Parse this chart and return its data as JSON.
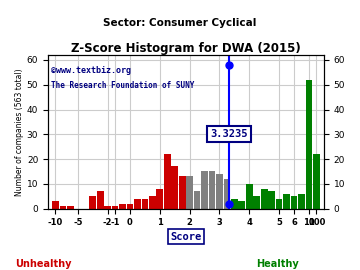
{
  "title": "Z-Score Histogram for DWA (2015)",
  "subtitle": "Sector: Consumer Cyclical",
  "watermark1": "©www.textbiz.org",
  "watermark2": "The Research Foundation of SUNY",
  "xlabel": "Score",
  "ylabel": "Number of companies (563 total)",
  "zscore_value": 3.3235,
  "zscore_label": "3.3235",
  "ylim": [
    0,
    60
  ],
  "yticks": [
    0,
    10,
    20,
    30,
    40,
    50,
    60
  ],
  "bg_color": "#ffffff",
  "plot_bg": "#ffffff",
  "grid_color": "#cccccc",
  "unhealthy_color": "#cc0000",
  "healthy_color": "#008000",
  "annotation_color": "#0000cc",
  "bars": [
    {
      "bin": -11,
      "height": 3,
      "color": "#cc0000"
    },
    {
      "bin": -10,
      "height": 1,
      "color": "#cc0000"
    },
    {
      "bin": -9,
      "height": 1,
      "color": "#cc0000"
    },
    {
      "bin": -8,
      "height": 0,
      "color": "#cc0000"
    },
    {
      "bin": -7,
      "height": 0,
      "color": "#cc0000"
    },
    {
      "bin": -6,
      "height": 5,
      "color": "#cc0000"
    },
    {
      "bin": -5,
      "height": 7,
      "color": "#cc0000"
    },
    {
      "bin": -4,
      "height": 1,
      "color": "#cc0000"
    },
    {
      "bin": -3,
      "height": 1,
      "color": "#cc0000"
    },
    {
      "bin": -2,
      "height": 2,
      "color": "#cc0000"
    },
    {
      "bin": -1,
      "height": 2,
      "color": "#cc0000"
    },
    {
      "bin": 0,
      "height": 4,
      "color": "#cc0000"
    },
    {
      "bin": 1,
      "height": 4,
      "color": "#cc0000"
    },
    {
      "bin": 2,
      "height": 5,
      "color": "#cc0000"
    },
    {
      "bin": 3,
      "height": 8,
      "color": "#cc0000"
    },
    {
      "bin": 4,
      "height": 22,
      "color": "#cc0000"
    },
    {
      "bin": 5,
      "height": 17,
      "color": "#cc0000"
    },
    {
      "bin": 6,
      "height": 13,
      "color": "#cc0000"
    },
    {
      "bin": 7,
      "height": 13,
      "color": "#808080"
    },
    {
      "bin": 8,
      "height": 7,
      "color": "#808080"
    },
    {
      "bin": 9,
      "height": 15,
      "color": "#808080"
    },
    {
      "bin": 10,
      "height": 15,
      "color": "#808080"
    },
    {
      "bin": 11,
      "height": 14,
      "color": "#808080"
    },
    {
      "bin": 12,
      "height": 12,
      "color": "#808080"
    },
    {
      "bin": 13,
      "height": 4,
      "color": "#008000"
    },
    {
      "bin": 14,
      "height": 3,
      "color": "#008000"
    },
    {
      "bin": 15,
      "height": 10,
      "color": "#008000"
    },
    {
      "bin": 16,
      "height": 5,
      "color": "#008000"
    },
    {
      "bin": 17,
      "height": 8,
      "color": "#008000"
    },
    {
      "bin": 18,
      "height": 7,
      "color": "#008000"
    },
    {
      "bin": 19,
      "height": 4,
      "color": "#008000"
    },
    {
      "bin": 20,
      "height": 6,
      "color": "#008000"
    },
    {
      "bin": 21,
      "height": 5,
      "color": "#008000"
    },
    {
      "bin": 22,
      "height": 6,
      "color": "#008000"
    },
    {
      "bin": 23,
      "height": 52,
      "color": "#008000"
    },
    {
      "bin": 24,
      "height": 22,
      "color": "#008000"
    }
  ],
  "xtick_bins": [
    -11,
    -8,
    -4,
    -3,
    -1,
    3,
    7,
    11,
    15,
    19,
    21,
    23,
    24
  ],
  "xtick_labels": [
    "-10",
    "-5",
    "-2",
    "-1",
    "0",
    "1",
    "2",
    "3",
    "4",
    "5",
    "6",
    "10",
    "100"
  ]
}
